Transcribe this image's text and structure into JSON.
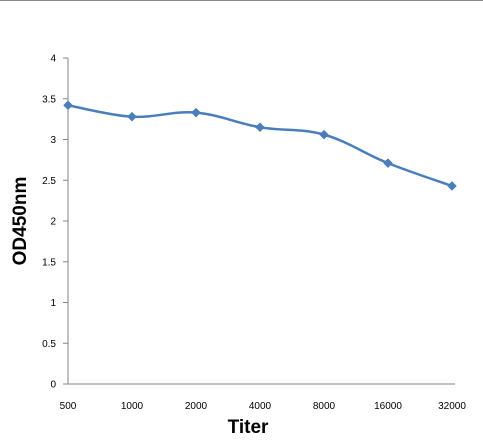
{
  "chart_data": {
    "type": "line",
    "title": "",
    "xlabel": "Titer",
    "ylabel": "OD450nm",
    "categories": [
      "500",
      "1000",
      "2000",
      "4000",
      "8000",
      "16000",
      "32000"
    ],
    "series": [
      {
        "values": [
          3.42,
          3.28,
          3.33,
          3.15,
          3.06,
          2.71,
          2.43
        ],
        "color": "#4a7ebb",
        "marker": "diamond"
      }
    ],
    "ylim": [
      0,
      4
    ],
    "yticks": [
      0,
      0.5,
      1,
      1.5,
      2,
      2.5,
      3,
      3.5,
      4
    ],
    "ytick_labels": [
      "0",
      "0.5",
      "1",
      "1.5",
      "2",
      "2.5",
      "3",
      "3.5",
      "4"
    ],
    "grid": false,
    "legend": "none",
    "smooth": true
  }
}
